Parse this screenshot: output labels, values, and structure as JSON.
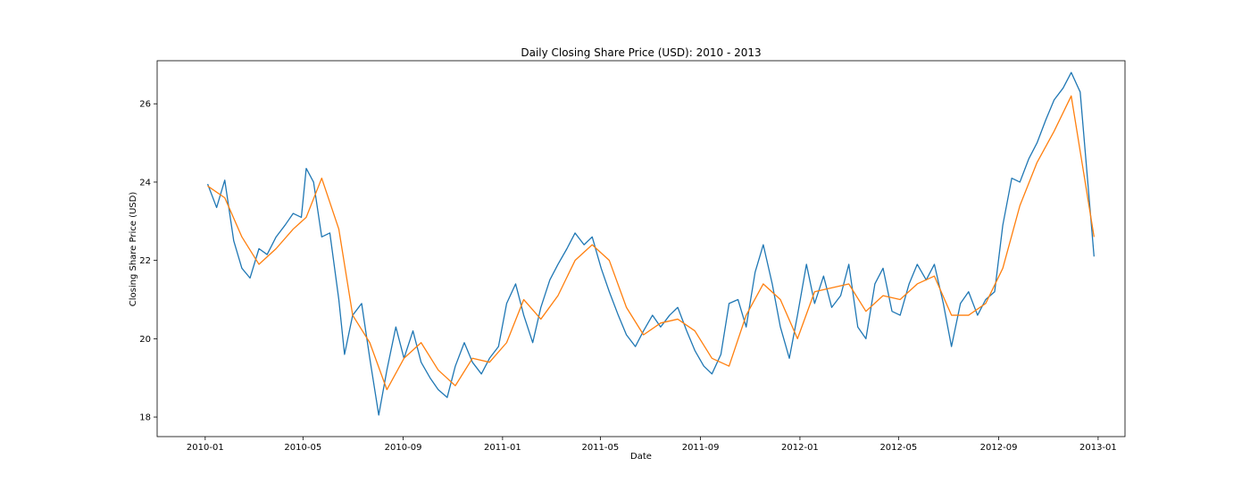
{
  "chart_data": {
    "type": "line",
    "title": "Daily Closing Share Price (USD): 2010 - 2013",
    "xlabel": "Date",
    "ylabel": "Closing Share Price (USD)",
    "x_type": "date",
    "xlim": [
      "2009-11-03",
      "2013-02-03"
    ],
    "ylim": [
      17.5,
      27.1
    ],
    "x_ticks": [
      "2010-01",
      "2010-05",
      "2010-09",
      "2011-01",
      "2011-05",
      "2011-09",
      "2012-01",
      "2012-05",
      "2012-09",
      "2013-01"
    ],
    "y_ticks": [
      18,
      20,
      22,
      24,
      26
    ],
    "grid": false,
    "legend": "none",
    "series": [
      {
        "color": "#1f77b4",
        "points": [
          [
            "2010-01-04",
            23.95
          ],
          [
            "2010-01-15",
            23.35
          ],
          [
            "2010-01-25",
            24.05
          ],
          [
            "2010-02-05",
            22.5
          ],
          [
            "2010-02-15",
            21.8
          ],
          [
            "2010-02-25",
            21.55
          ],
          [
            "2010-03-08",
            22.3
          ],
          [
            "2010-03-18",
            22.15
          ],
          [
            "2010-03-29",
            22.6
          ],
          [
            "2010-04-09",
            22.9
          ],
          [
            "2010-04-19",
            23.2
          ],
          [
            "2010-04-29",
            23.1
          ],
          [
            "2010-05-05",
            24.35
          ],
          [
            "2010-05-14",
            24.0
          ],
          [
            "2010-05-24",
            22.6
          ],
          [
            "2010-06-03",
            22.7
          ],
          [
            "2010-06-14",
            21.0
          ],
          [
            "2010-06-21",
            19.6
          ],
          [
            "2010-07-01",
            20.6
          ],
          [
            "2010-07-12",
            20.9
          ],
          [
            "2010-07-22",
            19.5
          ],
          [
            "2010-08-02",
            18.05
          ],
          [
            "2010-08-12",
            19.2
          ],
          [
            "2010-08-23",
            20.3
          ],
          [
            "2010-09-02",
            19.5
          ],
          [
            "2010-09-13",
            20.2
          ],
          [
            "2010-09-23",
            19.4
          ],
          [
            "2010-10-04",
            19.0
          ],
          [
            "2010-10-14",
            18.7
          ],
          [
            "2010-10-25",
            18.5
          ],
          [
            "2010-11-04",
            19.3
          ],
          [
            "2010-11-15",
            19.9
          ],
          [
            "2010-11-25",
            19.4
          ],
          [
            "2010-12-06",
            19.1
          ],
          [
            "2010-12-16",
            19.5
          ],
          [
            "2010-12-27",
            19.8
          ],
          [
            "2011-01-06",
            20.9
          ],
          [
            "2011-01-17",
            21.4
          ],
          [
            "2011-01-27",
            20.6
          ],
          [
            "2011-02-07",
            19.9
          ],
          [
            "2011-02-17",
            20.8
          ],
          [
            "2011-02-28",
            21.5
          ],
          [
            "2011-03-10",
            21.9
          ],
          [
            "2011-03-21",
            22.3
          ],
          [
            "2011-03-31",
            22.7
          ],
          [
            "2011-04-11",
            22.4
          ],
          [
            "2011-04-21",
            22.6
          ],
          [
            "2011-05-02",
            21.8
          ],
          [
            "2011-05-12",
            21.2
          ],
          [
            "2011-05-23",
            20.6
          ],
          [
            "2011-06-02",
            20.1
          ],
          [
            "2011-06-13",
            19.8
          ],
          [
            "2011-06-23",
            20.2
          ],
          [
            "2011-07-04",
            20.6
          ],
          [
            "2011-07-14",
            20.3
          ],
          [
            "2011-07-25",
            20.6
          ],
          [
            "2011-08-04",
            20.8
          ],
          [
            "2011-08-15",
            20.2
          ],
          [
            "2011-08-25",
            19.7
          ],
          [
            "2011-09-05",
            19.3
          ],
          [
            "2011-09-15",
            19.1
          ],
          [
            "2011-09-26",
            19.6
          ],
          [
            "2011-10-06",
            20.9
          ],
          [
            "2011-10-17",
            21.0
          ],
          [
            "2011-10-27",
            20.3
          ],
          [
            "2011-11-07",
            21.7
          ],
          [
            "2011-11-17",
            22.4
          ],
          [
            "2011-11-28",
            21.4
          ],
          [
            "2011-12-08",
            20.3
          ],
          [
            "2011-12-19",
            19.5
          ],
          [
            "2011-12-29",
            20.6
          ],
          [
            "2012-01-09",
            21.9
          ],
          [
            "2012-01-19",
            20.9
          ],
          [
            "2012-01-30",
            21.6
          ],
          [
            "2012-02-09",
            20.8
          ],
          [
            "2012-02-20",
            21.1
          ],
          [
            "2012-03-01",
            21.9
          ],
          [
            "2012-03-12",
            20.3
          ],
          [
            "2012-03-22",
            20.0
          ],
          [
            "2012-04-02",
            21.4
          ],
          [
            "2012-04-12",
            21.8
          ],
          [
            "2012-04-23",
            20.7
          ],
          [
            "2012-05-03",
            20.6
          ],
          [
            "2012-05-14",
            21.4
          ],
          [
            "2012-05-24",
            21.9
          ],
          [
            "2012-06-04",
            21.5
          ],
          [
            "2012-06-14",
            21.9
          ],
          [
            "2012-06-25",
            20.9
          ],
          [
            "2012-07-05",
            19.8
          ],
          [
            "2012-07-16",
            20.9
          ],
          [
            "2012-07-26",
            21.2
          ],
          [
            "2012-08-06",
            20.6
          ],
          [
            "2012-08-16",
            21.0
          ],
          [
            "2012-08-27",
            21.2
          ],
          [
            "2012-09-06",
            22.9
          ],
          [
            "2012-09-17",
            24.1
          ],
          [
            "2012-09-27",
            24.0
          ],
          [
            "2012-10-08",
            24.6
          ],
          [
            "2012-10-18",
            25.0
          ],
          [
            "2012-10-29",
            25.6
          ],
          [
            "2012-11-08",
            26.1
          ],
          [
            "2012-11-19",
            26.4
          ],
          [
            "2012-11-29",
            26.8
          ],
          [
            "2012-12-10",
            26.3
          ],
          [
            "2012-12-27",
            22.1
          ]
        ]
      },
      {
        "color": "#ff7f0e",
        "points": [
          [
            "2010-01-04",
            23.9
          ],
          [
            "2010-01-25",
            23.6
          ],
          [
            "2010-02-15",
            22.6
          ],
          [
            "2010-03-08",
            21.9
          ],
          [
            "2010-03-29",
            22.3
          ],
          [
            "2010-04-19",
            22.8
          ],
          [
            "2010-05-05",
            23.1
          ],
          [
            "2010-05-24",
            24.1
          ],
          [
            "2010-06-14",
            22.8
          ],
          [
            "2010-07-01",
            20.6
          ],
          [
            "2010-07-22",
            19.9
          ],
          [
            "2010-08-12",
            18.7
          ],
          [
            "2010-09-02",
            19.5
          ],
          [
            "2010-09-23",
            19.9
          ],
          [
            "2010-10-14",
            19.2
          ],
          [
            "2010-11-04",
            18.8
          ],
          [
            "2010-11-25",
            19.5
          ],
          [
            "2010-12-16",
            19.4
          ],
          [
            "2011-01-06",
            19.9
          ],
          [
            "2011-01-27",
            21.0
          ],
          [
            "2011-02-17",
            20.5
          ],
          [
            "2011-03-10",
            21.1
          ],
          [
            "2011-03-31",
            22.0
          ],
          [
            "2011-04-21",
            22.4
          ],
          [
            "2011-05-12",
            22.0
          ],
          [
            "2011-06-02",
            20.8
          ],
          [
            "2011-06-23",
            20.1
          ],
          [
            "2011-07-14",
            20.4
          ],
          [
            "2011-08-04",
            20.5
          ],
          [
            "2011-08-25",
            20.2
          ],
          [
            "2011-09-15",
            19.5
          ],
          [
            "2011-10-06",
            19.3
          ],
          [
            "2011-10-27",
            20.6
          ],
          [
            "2011-11-17",
            21.4
          ],
          [
            "2011-12-08",
            21.0
          ],
          [
            "2011-12-29",
            20.0
          ],
          [
            "2012-01-19",
            21.2
          ],
          [
            "2012-02-09",
            21.3
          ],
          [
            "2012-03-01",
            21.4
          ],
          [
            "2012-03-22",
            20.7
          ],
          [
            "2012-04-12",
            21.1
          ],
          [
            "2012-05-03",
            21.0
          ],
          [
            "2012-05-24",
            21.4
          ],
          [
            "2012-06-14",
            21.6
          ],
          [
            "2012-07-05",
            20.6
          ],
          [
            "2012-07-26",
            20.6
          ],
          [
            "2012-08-16",
            20.9
          ],
          [
            "2012-09-06",
            21.8
          ],
          [
            "2012-09-27",
            23.4
          ],
          [
            "2012-10-18",
            24.5
          ],
          [
            "2012-11-08",
            25.3
          ],
          [
            "2012-11-29",
            26.2
          ],
          [
            "2012-12-27",
            22.6
          ]
        ]
      }
    ]
  }
}
